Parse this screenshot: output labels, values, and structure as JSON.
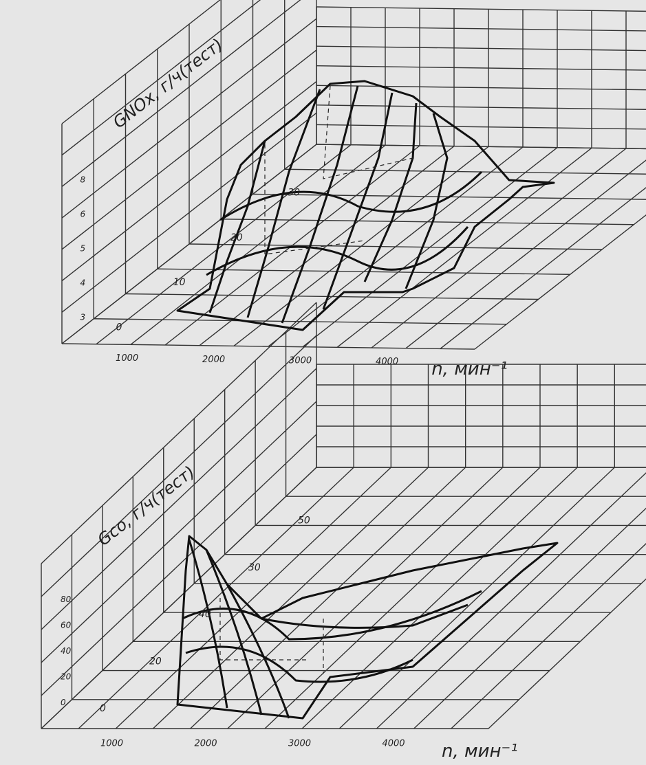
{
  "panels": [
    {
      "z_title": "GNOx, г/ч(тест)",
      "z_ticks": [
        "3",
        "4",
        "5",
        "6",
        "8"
      ],
      "depth_ticks": [
        "0",
        "10",
        "20",
        "30"
      ],
      "x_ticks": [
        "1000",
        "2000",
        "3000",
        "4000"
      ],
      "x_label": "n, мин⁻¹"
    },
    {
      "z_title": "Gco, г/ч(тест)",
      "z_ticks": [
        "0",
        "20",
        "40",
        "60",
        "80"
      ],
      "depth_ticks": [
        "0",
        "20",
        "40",
        "30",
        "50"
      ],
      "x_ticks": [
        "1000",
        "2000",
        "3000",
        "4000"
      ],
      "x_label": "n, мин⁻¹"
    }
  ]
}
